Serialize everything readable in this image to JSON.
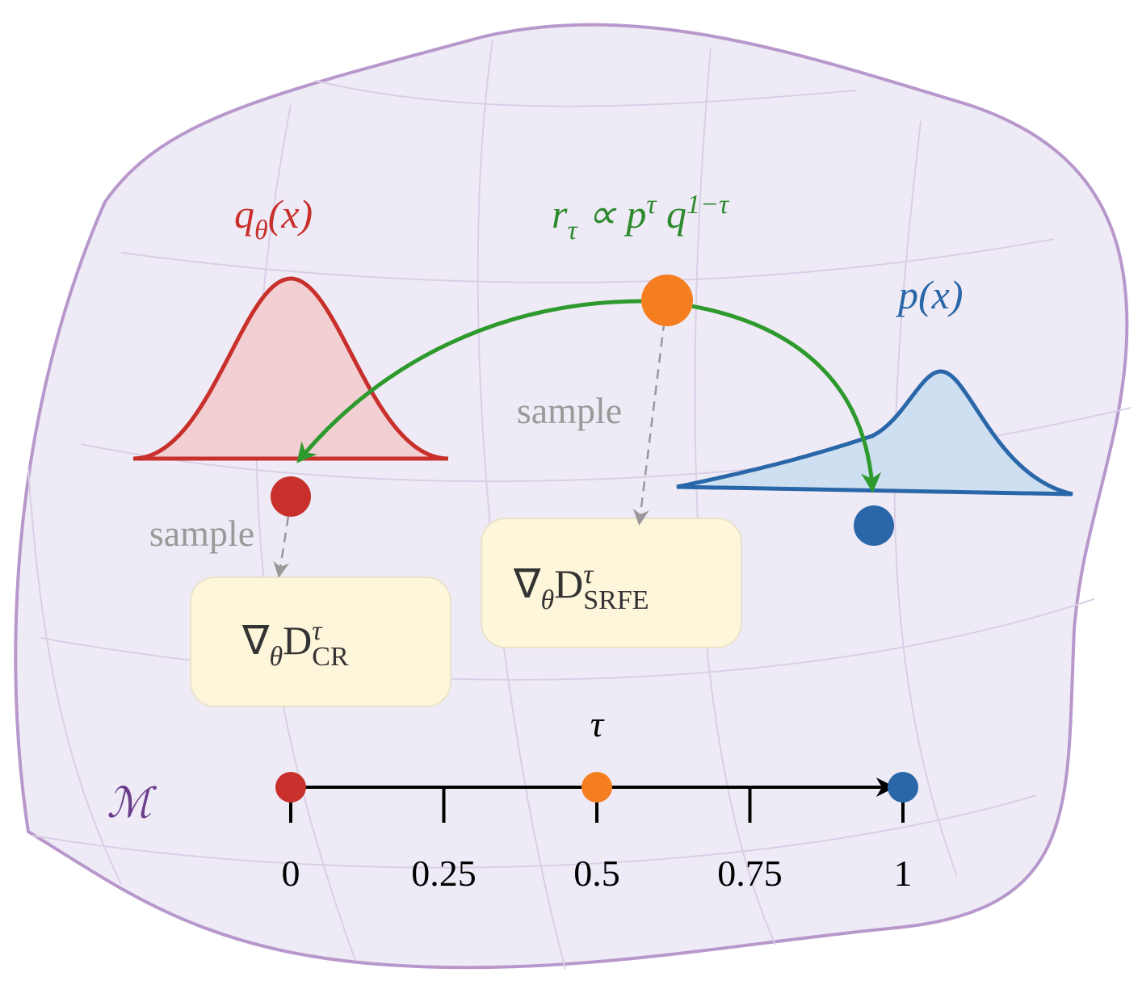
{
  "labels": {
    "q": [
      {
        "text": "q"
      },
      {
        "sub": "θ"
      },
      {
        "text": "(x)"
      }
    ],
    "r": [
      {
        "text": "r"
      },
      {
        "sub": "τ"
      },
      {
        "text": " ∝ p"
      },
      {
        "sup": "τ"
      },
      {
        "text": " q"
      },
      {
        "sup": "1−τ"
      }
    ],
    "p": [
      {
        "text": "p(x)"
      }
    ],
    "grad_srfe": [
      {
        "text": "∇"
      },
      {
        "sub": "θ"
      },
      {
        "text": "D"
      },
      {
        "sup": "τ"
      },
      {
        "sub": "SRFE"
      }
    ],
    "grad_cr": [
      {
        "text": "∇"
      },
      {
        "sub": "θ"
      },
      {
        "text": "D"
      },
      {
        "sup": "τ"
      },
      {
        "sub": "CR"
      }
    ],
    "sample_top": "sample",
    "sample_left": "sample",
    "manifold": "ℳ"
  },
  "axis": {
    "label": "τ",
    "lim": [
      0,
      1
    ],
    "ticks": [
      0,
      0.25,
      0.5,
      0.75,
      1
    ],
    "points": [
      {
        "value": 0,
        "color": "#c8302c"
      },
      {
        "value": 0.5,
        "color": "#f57f20"
      },
      {
        "value": 1,
        "color": "#2a67a8"
      }
    ]
  }
}
